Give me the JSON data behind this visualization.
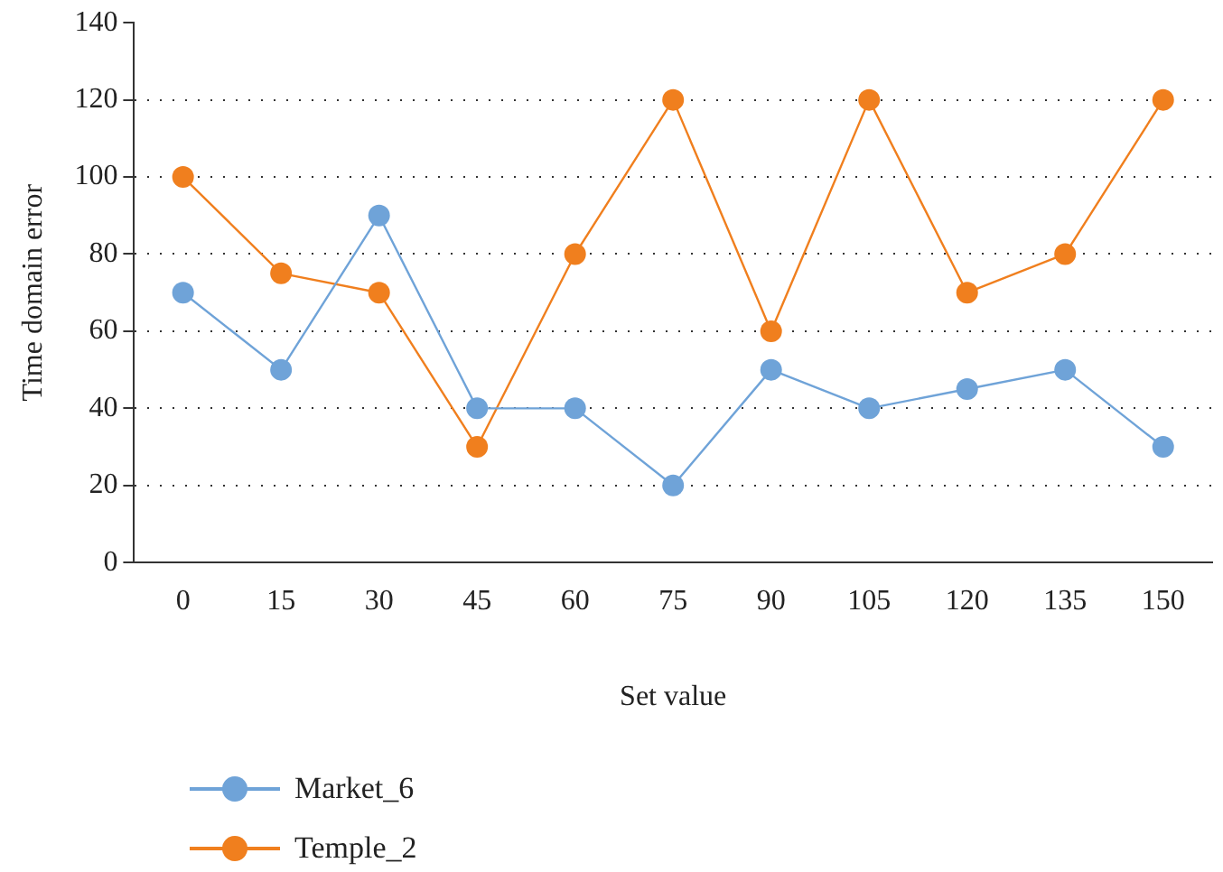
{
  "chart_data": {
    "type": "line",
    "xlabel": "Set value",
    "ylabel": "Time domain error",
    "categories": [
      "0",
      "15",
      "30",
      "45",
      "60",
      "75",
      "90",
      "105",
      "120",
      "135",
      "150"
    ],
    "series": [
      {
        "name": "Market_6",
        "color": "#6fa3d8",
        "values": [
          70,
          50,
          90,
          40,
          40,
          20,
          50,
          40,
          45,
          50,
          30
        ]
      },
      {
        "name": "Temple_2",
        "color": "#f07f1e",
        "values": [
          100,
          75,
          70,
          30,
          80,
          120,
          60,
          120,
          70,
          80,
          120
        ]
      }
    ],
    "ylim": [
      0,
      140
    ],
    "yticks": [
      0,
      20,
      40,
      60,
      80,
      100,
      120,
      140
    ],
    "grid": "y",
    "legend": "bottom",
    "marker": "circle",
    "line_style": "solid"
  }
}
